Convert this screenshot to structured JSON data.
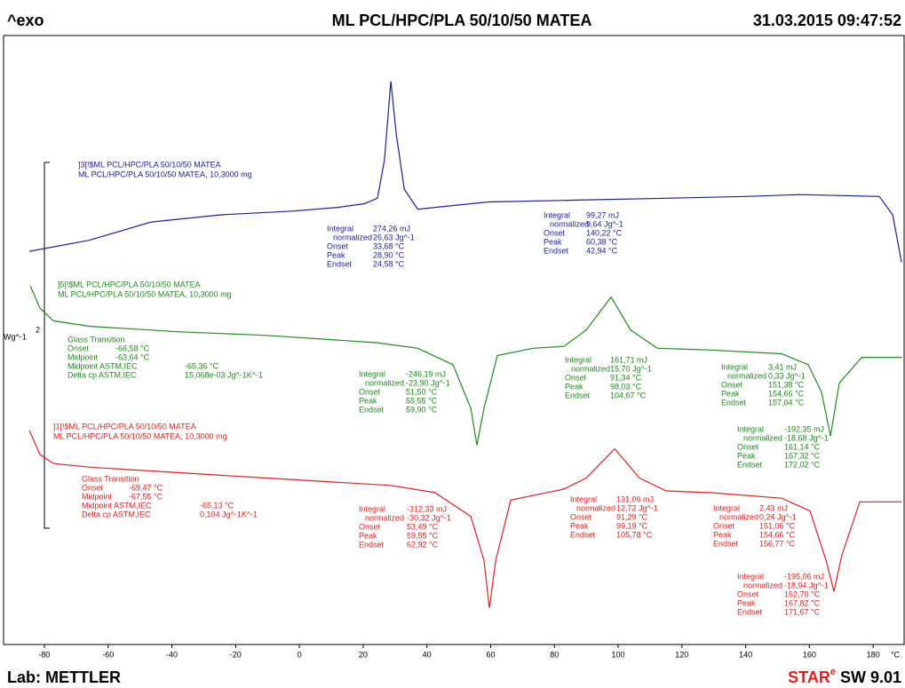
{
  "chart_data": {
    "type": "line",
    "exo_label": "^exo",
    "title": "ML PCL/HPC/PLA 50/10/50 MATEA",
    "timestamp": "31.03.2015 09:47:52",
    "lab": "Lab: METTLER",
    "software": {
      "star": "STAR",
      "sup": "e",
      "rest": "SW 9.01"
    },
    "y_label": "Wg^-1",
    "scale_bar": 2,
    "x_unit": "°C",
    "xlim": [
      -92.8,
      189.7
    ],
    "ylim": [
      0,
      3.33
    ],
    "xticks": [
      -80,
      -60,
      -40,
      -20,
      0,
      20,
      40,
      60,
      80,
      100,
      120,
      140,
      160,
      180
    ],
    "series": [
      {
        "name": "]3[!$ML PCL/HPC/PLA 50/10/50 MATEA",
        "sample": "ML PCL/HPC/PLA 50/10/50 MATEA, 10,3000 mg",
        "color": "#1c1ca0",
        "x": [
          -84.7,
          -66.0,
          -46.5,
          -24.2,
          -2.0,
          12.0,
          20.3,
          24.5,
          26.7,
          28.7,
          30.4,
          32.9,
          37.1,
          42.6,
          59.3,
          87.2,
          115.1,
          140.2,
          156.9,
          181.9,
          186.1,
          188.9
        ],
        "values": [
          2.15,
          2.21,
          2.31,
          2.35,
          2.37,
          2.39,
          2.41,
          2.44,
          2.65,
          3.08,
          2.79,
          2.49,
          2.38,
          2.39,
          2.42,
          2.43,
          2.44,
          2.45,
          2.46,
          2.45,
          2.35,
          2.09
        ],
        "annotations": [
          {
            "lines": [
              [
                "Integral",
                "274,26 mJ"
              ],
              [
                "normalized",
                "26,63 Jg^-1"
              ],
              [
                "Onset",
                "33,68 °C"
              ],
              [
                "Peak",
                "28,90 °C"
              ],
              [
                "Endset",
                "24,58 °C"
              ]
            ]
          },
          {
            "lines": [
              [
                "Integral",
                "99,27 mJ"
              ],
              [
                "normalized",
                "9,64 Jg^-1"
              ],
              [
                "Onset",
                "140,22 °C"
              ],
              [
                "Peak",
                "60,38 °C"
              ],
              [
                "Endset",
                "42,94 °C"
              ]
            ]
          }
        ]
      },
      {
        "name": "]5[!$ML PCL/HPC/PLA 50/10/50 MATEA",
        "sample": "ML PCL/HPC/PLA 50/10/50 MATEA, 10,3000 mg",
        "color": "#1f8a1f",
        "x": [
          -84.4,
          -81.4,
          -77.2,
          -66.0,
          -38.2,
          -10.3,
          24.5,
          37.1,
          48.2,
          53.8,
          55.7,
          57.9,
          62.1,
          73.3,
          83.0,
          90.0,
          97.8,
          103.9,
          112.3,
          129.0,
          151.3,
          159.6,
          163.8,
          166.6,
          169.4,
          176.4,
          188.9
        ],
        "values": [
          1.96,
          1.84,
          1.77,
          1.74,
          1.71,
          1.69,
          1.65,
          1.62,
          1.53,
          1.29,
          1.09,
          1.29,
          1.58,
          1.62,
          1.63,
          1.72,
          1.9,
          1.72,
          1.62,
          1.61,
          1.59,
          1.53,
          1.38,
          1.14,
          1.43,
          1.57,
          1.57
        ],
        "annotations": [
          {
            "lines": [
              [
                "Glass Transition"
              ],
              [
                "Onset",
                "-66,58 °C"
              ],
              [
                "Midpoint",
                "-63,64 °C"
              ],
              [
                "Midpoint ASTM,IEC",
                "-65,36 °C"
              ],
              [
                "Delta cp ASTM,IEC",
                "15,068e-03 Jg^-1K^-1"
              ]
            ]
          },
          {
            "lines": [
              [
                "Integral",
                "-246,19 mJ"
              ],
              [
                "normalized",
                "-23,90 Jg^-1"
              ],
              [
                "Onset",
                "51,50 °C"
              ],
              [
                "Peak",
                "55,55 °C"
              ],
              [
                "Endset",
                "59,90 °C"
              ]
            ]
          },
          {
            "lines": [
              [
                "Integral",
                "161,71 mJ"
              ],
              [
                "normalized",
                "15,70 Jg^-1"
              ],
              [
                "Onset",
                "91,34 °C"
              ],
              [
                "Peak",
                "98,03 °C"
              ],
              [
                "Endset",
                "104,67 °C"
              ]
            ]
          },
          {
            "lines": [
              [
                "Integral",
                "3,41 mJ"
              ],
              [
                "normalized",
                "0,33 Jg^-1"
              ],
              [
                "Onset",
                "151,38 °C"
              ],
              [
                "Peak",
                "154,66 °C"
              ],
              [
                "Endset",
                "157,04 °C"
              ]
            ]
          },
          {
            "lines": [
              [
                "Integral",
                "-192,35 mJ"
              ],
              [
                "normalized",
                "-18,68 Jg^-1"
              ],
              [
                "Onset",
                "161,14 °C"
              ],
              [
                "Peak",
                "167,32 °C"
              ],
              [
                "Endset",
                "172,02 °C"
              ]
            ]
          }
        ]
      },
      {
        "name": "]1[!$ML PCL/HPC/PLA 50/10/50 MATEA",
        "sample": "ML PCL/HPC/PLA 50/10/50 MATEA, 10,3000 mg",
        "color": "#e81c1c",
        "x": [
          -84.7,
          -81.4,
          -77.2,
          -66.0,
          -38.2,
          -10.3,
          28.7,
          42.6,
          53.8,
          57.9,
          59.6,
          61.6,
          66.3,
          83.0,
          90.0,
          98.9,
          106.7,
          115.1,
          129.0,
          151.3,
          160.2,
          165.2,
          167.7,
          170.2,
          175.8,
          188.9
        ],
        "values": [
          1.17,
          1.04,
          0.99,
          0.97,
          0.94,
          0.91,
          0.87,
          0.83,
          0.7,
          0.46,
          0.2,
          0.46,
          0.79,
          0.85,
          0.91,
          1.07,
          0.91,
          0.84,
          0.83,
          0.8,
          0.73,
          0.46,
          0.29,
          0.49,
          0.78,
          0.78
        ],
        "annotations": [
          {
            "lines": [
              [
                "Glass Transition"
              ],
              [
                "Onset",
                "-69,47 °C"
              ],
              [
                "Midpoint",
                "-67,55 °C"
              ],
              [
                "Midpoint ASTM,IEC",
                "-65,13 °C"
              ],
              [
                "Delta cp ASTM,IEC",
                "0,104 Jg^-1K^-1"
              ]
            ]
          },
          {
            "lines": [
              [
                "Integral",
                "-312,33 mJ"
              ],
              [
                "normalized",
                "-30,32 Jg^-1"
              ],
              [
                "Onset",
                "53,49 °C"
              ],
              [
                "Peak",
                "59,55 °C"
              ],
              [
                "Endset",
                "62,92 °C"
              ]
            ]
          },
          {
            "lines": [
              [
                "Integral",
                "131,06 mJ"
              ],
              [
                "normalized",
                "12,72 Jg^-1"
              ],
              [
                "Onset",
                "91,29 °C"
              ],
              [
                "Peak",
                "99,19 °C"
              ],
              [
                "Endset",
                "105,78 °C"
              ]
            ]
          },
          {
            "lines": [
              [
                "Integral",
                "2,43 mJ"
              ],
              [
                "normalized",
                "0,24 Jg^-1"
              ],
              [
                "Onset",
                "151,06 °C"
              ],
              [
                "Peak",
                "154,66 °C"
              ],
              [
                "Endset",
                "156,77 °C"
              ]
            ]
          },
          {
            "lines": [
              [
                "Integral",
                "-195,06 mJ"
              ],
              [
                "normalized",
                "-18,94 Jg^-1"
              ],
              [
                "Onset",
                "162,70 °C"
              ],
              [
                "Peak",
                "167,82 °C"
              ],
              [
                "Endset",
                "171,67 °C"
              ]
            ]
          }
        ]
      }
    ]
  }
}
